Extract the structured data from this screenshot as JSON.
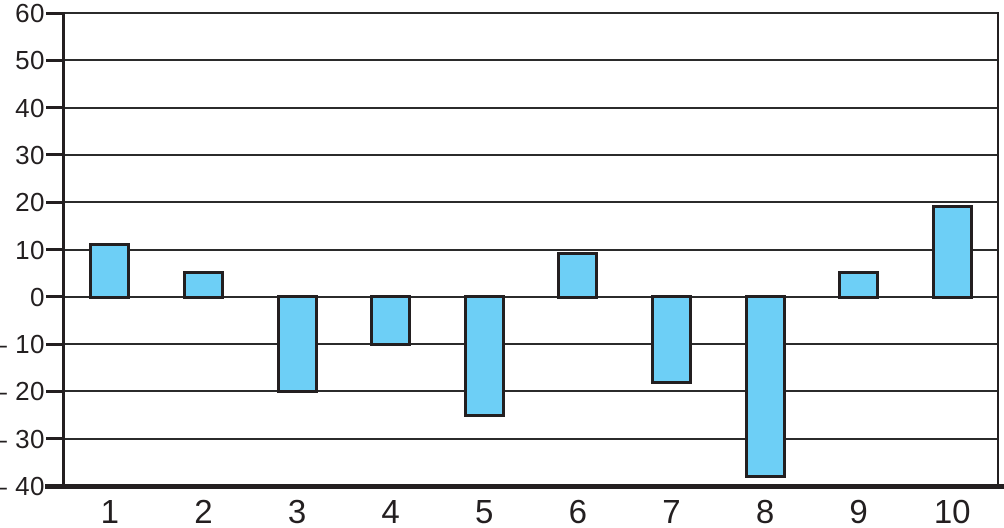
{
  "chart_data": {
    "type": "bar",
    "title": "",
    "xlabel": "",
    "ylabel": "",
    "categories": [
      "1",
      "2",
      "3",
      "4",
      "5",
      "6",
      "7",
      "8",
      "9",
      "10"
    ],
    "values": [
      11,
      5,
      -20,
      -10,
      -25,
      9,
      -18,
      -38,
      5,
      19
    ],
    "ylim": [
      -40,
      60
    ],
    "ytick_values": [
      60,
      50,
      40,
      30,
      20,
      10,
      0,
      -10,
      -20,
      -30,
      -40
    ],
    "ytick_labels": [
      "60",
      "50",
      "40",
      "30",
      "20",
      "10",
      "0",
      "– 10",
      "– 20",
      "– 30",
      "– 40"
    ],
    "baseline": 0,
    "grid": "horizontal-gridlines",
    "legend": "none",
    "colors": {
      "bar_fill": "#6DCFF6",
      "bar_border": "#231F20",
      "axis": "#231F20",
      "gridline": "#2B2B2B",
      "label_text": "#231F20",
      "background": "#FFFFFF"
    }
  }
}
